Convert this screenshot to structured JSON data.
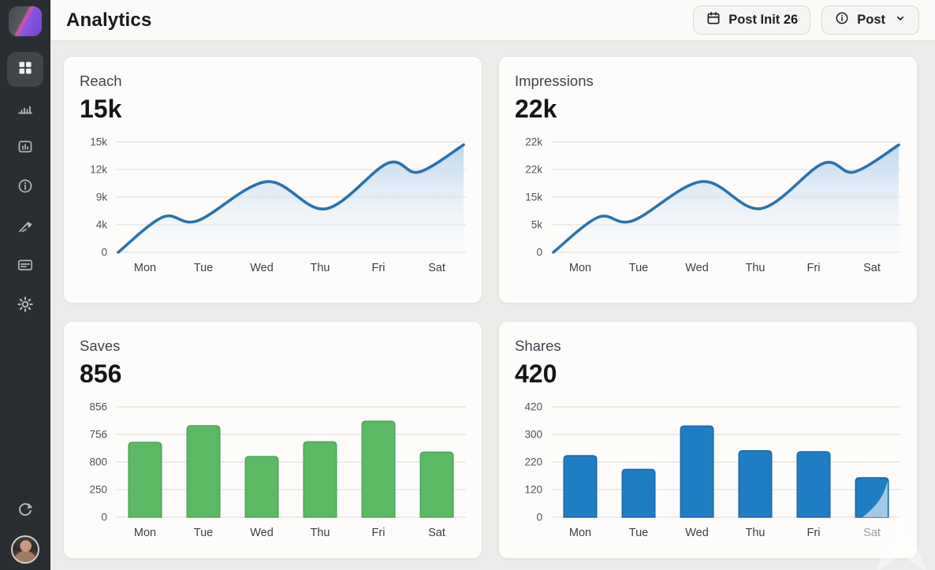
{
  "header": {
    "title": "Analytics",
    "date_button": {
      "label": "Post Init 26",
      "icon": "calendar-icon"
    },
    "post_button": {
      "label": "Post",
      "icon": "info-circle-icon",
      "chevron": true
    }
  },
  "sidebar": {
    "items": [
      {
        "icon": "dashboard-grid-icon",
        "active": true
      },
      {
        "icon": "bar-chart-icon",
        "active": false
      },
      {
        "icon": "media-frame-icon",
        "active": false
      },
      {
        "icon": "info-circle-icon",
        "active": false
      },
      {
        "icon": "signature-pen-icon",
        "active": false
      },
      {
        "icon": "card-icon",
        "active": false
      },
      {
        "icon": "settings-gear-icon",
        "active": false
      }
    ],
    "footer": [
      {
        "icon": "sync-icon"
      },
      {
        "icon": "user-avatar"
      }
    ]
  },
  "colors": {
    "sidebar_bg": "#2a2d31",
    "page_bg": "#edebe9",
    "card_bg": "#fdfcfb",
    "line_blue": "#2a72ad",
    "area_fill": "#b7d3ec",
    "bar_green": "#5cb963",
    "bar_blue": "#1f7dc4"
  },
  "chart_data": [
    {
      "type": "line",
      "title": "Reach",
      "big_value": "15k",
      "ymax": 15,
      "yticks": [
        "15k",
        "12k",
        "9k",
        "4k",
        "0"
      ],
      "categories": [
        "Mon",
        "Tue",
        "Wed",
        "Thu",
        "Fri",
        "Sat"
      ],
      "points": [
        {
          "f": 0.0,
          "v": 0
        },
        {
          "f": 0.13,
          "v": 4.8
        },
        {
          "f": 0.23,
          "v": 4.3
        },
        {
          "f": 0.43,
          "v": 9.6
        },
        {
          "f": 0.6,
          "v": 5.9
        },
        {
          "f": 0.78,
          "v": 12.1
        },
        {
          "f": 0.87,
          "v": 10.9
        },
        {
          "f": 1.0,
          "v": 14.6
        }
      ],
      "line_color": "#2a72ad",
      "area_fill": "#b7d3ec",
      "legend": "none",
      "grid": "horizontal"
    },
    {
      "type": "line",
      "title": "Impressions",
      "big_value": "22k",
      "ymax": 22,
      "yticks": [
        "22k",
        "22k",
        "15k",
        "5k",
        "0"
      ],
      "categories": [
        "Mon",
        "Tue",
        "Wed",
        "Thu",
        "Fri",
        "Sat"
      ],
      "points": [
        {
          "f": 0.0,
          "v": 0
        },
        {
          "f": 0.13,
          "v": 7.0
        },
        {
          "f": 0.23,
          "v": 6.3
        },
        {
          "f": 0.43,
          "v": 14.1
        },
        {
          "f": 0.6,
          "v": 8.7
        },
        {
          "f": 0.78,
          "v": 17.7
        },
        {
          "f": 0.87,
          "v": 16.0
        },
        {
          "f": 1.0,
          "v": 21.4
        }
      ],
      "line_color": "#2a72ad",
      "area_fill": "#b7d3ec",
      "legend": "none",
      "grid": "horizontal"
    },
    {
      "type": "bar",
      "title": "Saves",
      "big_value": "856",
      "ymax": 856,
      "yticks": [
        "856",
        "756",
        "800",
        "250",
        "0"
      ],
      "categories": [
        "Mon",
        "Tue",
        "Wed",
        "Thu",
        "Fri",
        "Sat"
      ],
      "values": [
        580,
        710,
        470,
        585,
        745,
        505
      ],
      "bar_color": "#5cb963",
      "bar_border": "#47a554",
      "legend": "none",
      "grid": "horizontal"
    },
    {
      "type": "bar",
      "title": "Shares",
      "big_value": "420",
      "ymax": 420,
      "yticks": [
        "420",
        "300",
        "220",
        "120",
        "0"
      ],
      "categories": [
        "Mon",
        "Tue",
        "Wed",
        "Thu",
        "Fri",
        "Sat"
      ],
      "values": [
        234,
        182,
        347,
        253,
        249,
        150
      ],
      "bar_color": "#1f7dc4",
      "bar_border": "#1a67a9",
      "watermark": true,
      "watermark_color": "#a9cde9",
      "muted_last_label": true,
      "legend": "none",
      "grid": "horizontal"
    }
  ]
}
